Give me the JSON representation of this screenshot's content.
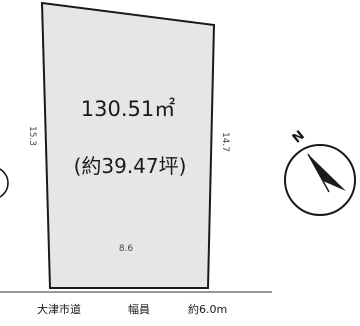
{
  "plot": {
    "area_sqm": "130.51㎡",
    "area_tsubo": "(約39.47坪)",
    "dimensions": {
      "left": "15.3",
      "right": "14.7",
      "bottom": "8.6"
    }
  },
  "road": {
    "name": "大津市道",
    "width_label": "幅員",
    "width_value": "約6.0m"
  },
  "compass": {
    "north_letter": "N"
  },
  "colors": {
    "plot_fill": "#e6e6e6",
    "line": "#1a1a1a"
  }
}
